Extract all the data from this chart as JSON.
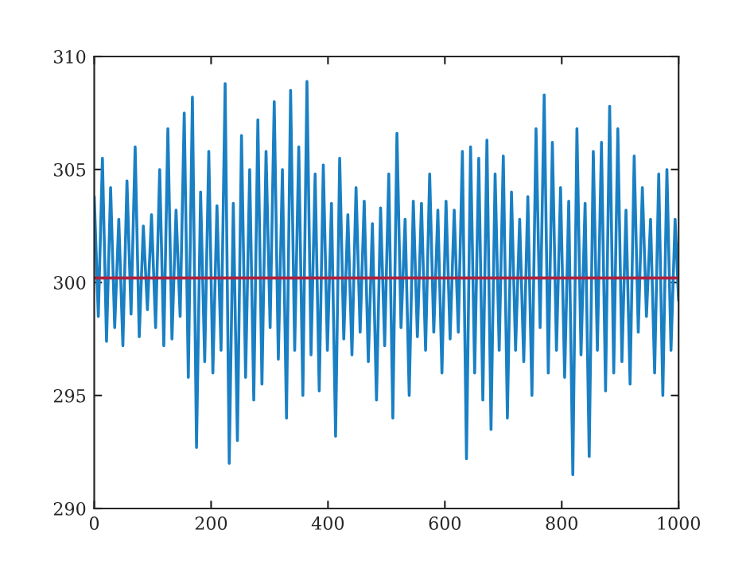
{
  "chart_data": {
    "type": "line",
    "x": [
      0,
      7,
      14,
      21,
      28,
      35,
      42,
      49,
      56,
      63,
      70,
      77,
      84,
      91,
      98,
      105,
      112,
      119,
      126,
      133,
      140,
      147,
      154,
      161,
      168,
      175,
      182,
      189,
      196,
      203,
      210,
      217,
      224,
      231,
      238,
      245,
      252,
      259,
      266,
      273,
      280,
      287,
      294,
      301,
      308,
      315,
      322,
      329,
      336,
      343,
      350,
      357,
      364,
      371,
      378,
      385,
      392,
      399,
      406,
      413,
      420,
      427,
      434,
      441,
      448,
      455,
      462,
      469,
      476,
      483,
      490,
      497,
      504,
      511,
      518,
      525,
      532,
      539,
      546,
      553,
      560,
      567,
      574,
      581,
      588,
      595,
      602,
      609,
      616,
      623,
      630,
      637,
      644,
      651,
      658,
      665,
      672,
      679,
      686,
      693,
      700,
      707,
      714,
      721,
      728,
      735,
      742,
      749,
      756,
      763,
      770,
      777,
      784,
      791,
      798,
      805,
      812,
      819,
      826,
      833,
      840,
      847,
      854,
      861,
      868,
      875,
      882,
      889,
      896,
      903,
      910,
      917,
      924,
      931,
      938,
      945,
      952,
      959,
      966,
      973,
      980,
      987,
      994,
      1000
    ],
    "series": [
      {
        "color": "#1a80c4",
        "values": [
          303.8,
          298.5,
          305.5,
          297.4,
          304.2,
          298.0,
          302.8,
          297.2,
          304.5,
          298.6,
          306.0,
          297.6,
          302.5,
          298.8,
          303.0,
          298.0,
          305.0,
          297.2,
          306.8,
          297.5,
          303.2,
          298.5,
          307.5,
          295.8,
          308.2,
          292.7,
          304.0,
          296.5,
          305.8,
          296.0,
          303.4,
          297.0,
          308.8,
          292.0,
          303.5,
          293.0,
          306.5,
          295.8,
          305.0,
          294.8,
          307.2,
          295.5,
          305.8,
          298.0,
          308.0,
          296.6,
          305.0,
          294.0,
          308.5,
          297.0,
          306.0,
          295.0,
          308.9,
          296.8,
          304.8,
          295.2,
          305.2,
          297.0,
          303.5,
          293.2,
          305.5,
          297.5,
          303.0,
          296.8,
          304.2,
          297.8,
          303.6,
          296.5,
          302.6,
          294.8,
          303.3,
          297.2,
          304.8,
          294.0,
          306.6,
          298.0,
          302.8,
          295.0,
          303.6,
          297.6,
          303.5,
          297.0,
          304.8,
          297.8,
          303.2,
          296.0,
          303.6,
          297.5,
          303.2,
          297.8,
          305.8,
          292.2,
          306.0,
          296.0,
          305.5,
          294.8,
          306.3,
          293.5,
          304.8,
          297.0,
          305.6,
          294.0,
          304.0,
          297.0,
          302.8,
          296.5,
          303.8,
          295.0,
          306.8,
          298.0,
          308.3,
          296.0,
          306.2,
          297.0,
          304.2,
          295.8,
          303.6,
          291.5,
          306.8,
          296.8,
          303.5,
          292.3,
          305.8,
          297.0,
          306.2,
          295.2,
          307.8,
          296.0,
          306.8,
          296.5,
          303.2,
          295.5,
          305.6,
          297.8,
          304.2,
          298.5,
          302.8,
          296.0,
          304.8,
          295.0,
          305.0,
          297.0,
          302.8,
          299.2
        ]
      }
    ],
    "xlim": [
      0,
      1000
    ],
    "ylim": [
      290,
      310
    ],
    "xticks": [
      0,
      200,
      400,
      600,
      800,
      1000
    ],
    "yticks": [
      290,
      295,
      300,
      305,
      310
    ],
    "ref_lines": [
      {
        "axis": "y",
        "value": 300.2,
        "color": "#b0203c"
      }
    ],
    "grid": false
  }
}
